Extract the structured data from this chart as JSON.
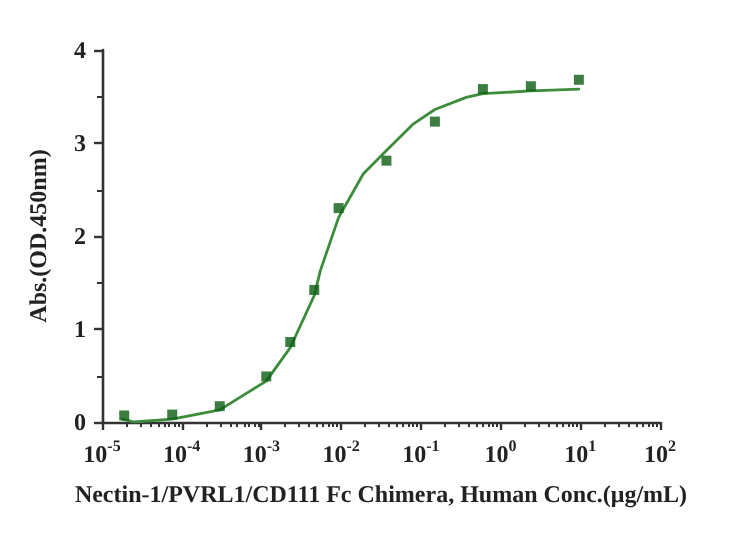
{
  "chart_data": {
    "type": "scatter",
    "xlabel": "Nectin-1/PVRL1/CD111 Fc Chimera, Human Conc.(μg/mL)",
    "ylabel": "Abs.(OD.450nm)",
    "log": "x",
    "grid": false,
    "xlim": [
      1e-05,
      100
    ],
    "xticks": [
      {
        "value": 1e-05,
        "label": "10$^{-5}$"
      },
      {
        "value": 0.0001,
        "label": "10$^{-4}$"
      },
      {
        "value": 0.001,
        "label": "10$^{-3}$"
      },
      {
        "value": 0.01,
        "label": "10$^{-2}$"
      },
      {
        "value": 0.1,
        "label": "10$^{-1}$"
      },
      {
        "value": 1,
        "label": "10$^{0}$"
      },
      {
        "value": 10,
        "label": "10$^{1}$"
      },
      {
        "value": 100,
        "label": "10$^{2}$"
      }
    ],
    "ylim": [
      0,
      4
    ],
    "yticks": [
      0,
      1,
      2,
      3,
      4
    ],
    "series": [
      {
        "marker": "square",
        "color": "#0b5e12",
        "x": [
          1.9e-05,
          7.6e-05,
          0.0003,
          0.00115,
          0.0023,
          0.0046,
          0.0093,
          0.037,
          0.15,
          0.6,
          2.4,
          9.6
        ],
        "values": [
          0.07,
          0.08,
          0.17,
          0.49,
          0.86,
          1.42,
          2.3,
          2.81,
          3.23,
          3.58,
          3.61,
          3.68
        ]
      },
      {
        "type": "line",
        "marker": "none",
        "line_style": "solid",
        "color": "#3c8c3c",
        "x": [
          1.8e-05,
          2.5e-05,
          7.6e-05,
          0.0003,
          0.00115,
          0.0023,
          0.0046,
          0.0055,
          0.0093,
          0.019,
          0.037,
          0.079,
          0.15,
          0.37,
          0.6,
          2.4,
          9.6
        ],
        "values": [
          0.03,
          0.0,
          0.03,
          0.13,
          0.44,
          0.8,
          1.36,
          1.63,
          2.2,
          2.67,
          2.92,
          3.2,
          3.36,
          3.49,
          3.53,
          3.56,
          3.58
        ]
      }
    ]
  }
}
